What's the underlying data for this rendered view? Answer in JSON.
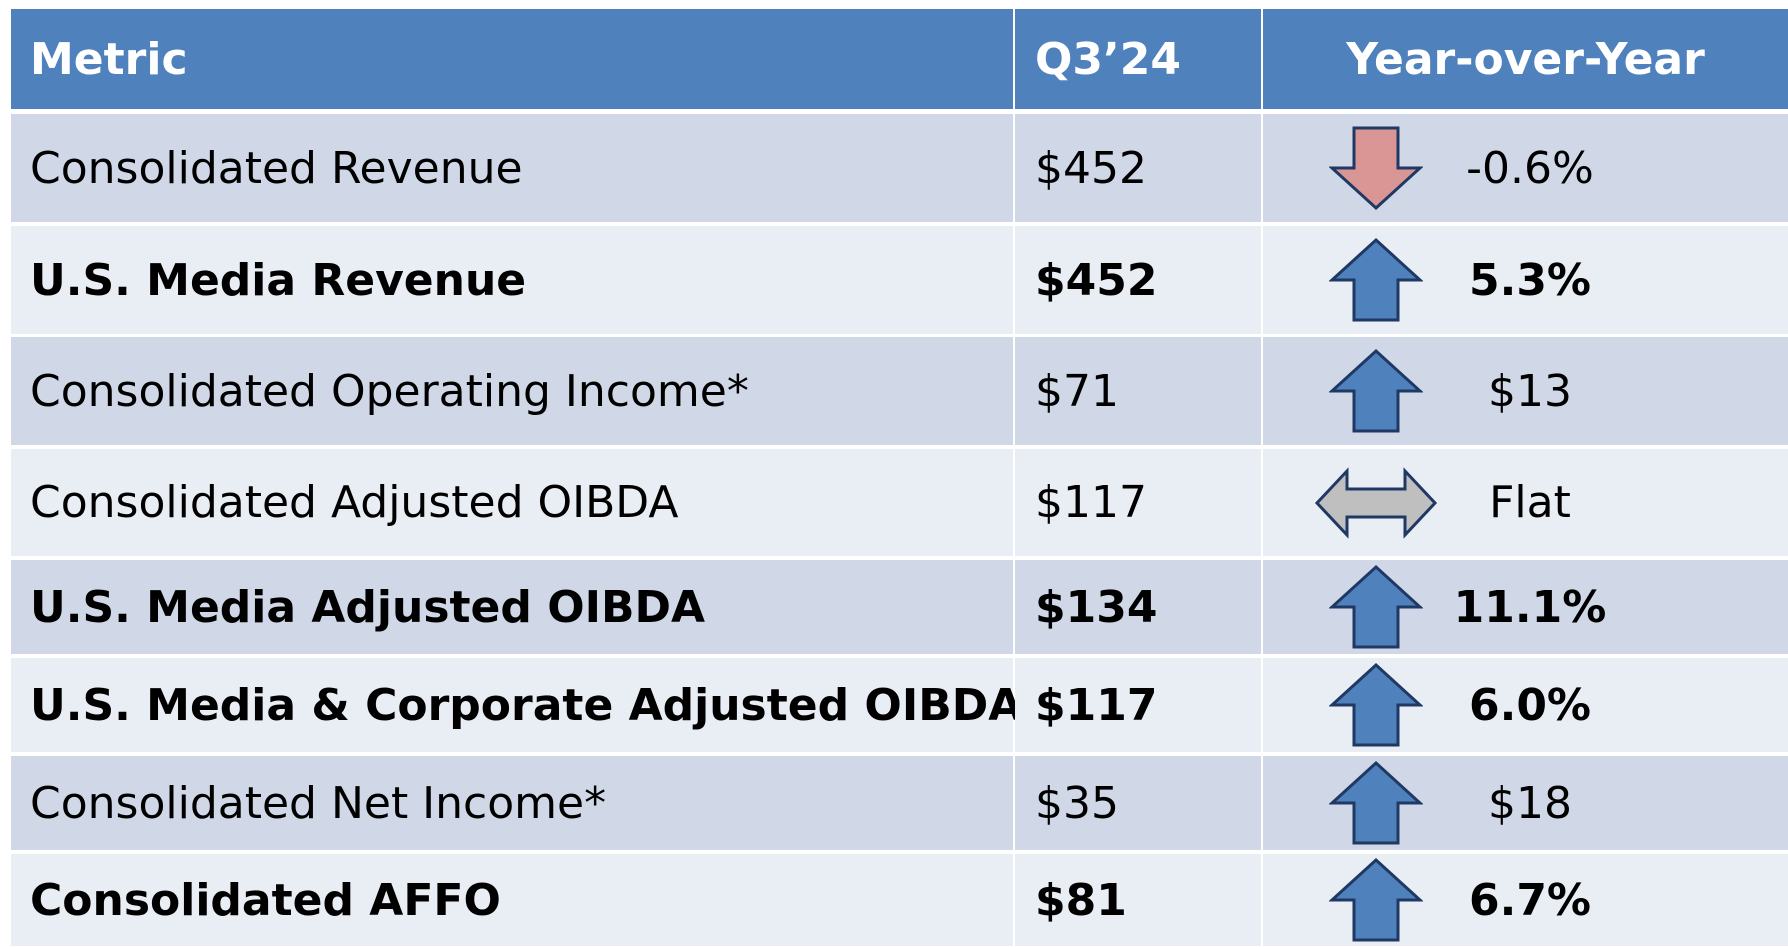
{
  "table": {
    "header": [
      "Metric",
      "Q3’24",
      "Year-over-Year"
    ],
    "rows": [
      [
        "Consolidated Revenue",
        "$452",
        "-0.6%"
      ],
      [
        "U.S. Media Revenue",
        "$452",
        "5.3%"
      ],
      [
        "Consolidated Operating Income*",
        "$71",
        "$13"
      ],
      [
        "Consolidated Adjusted OIBDA",
        "$117",
        "Flat"
      ],
      [
        "U.S. Media Adjusted OIBDA",
        "$134",
        "11.1%"
      ],
      [
        "U.S. Media & Corporate Adjusted OIBDA",
        "$117",
        "6.0%"
      ],
      [
        "Consolidated Net Income*",
        "$35",
        "$18"
      ],
      [
        "Consolidated AFFO",
        "$81",
        "6.7%"
      ]
    ]
  }
}
